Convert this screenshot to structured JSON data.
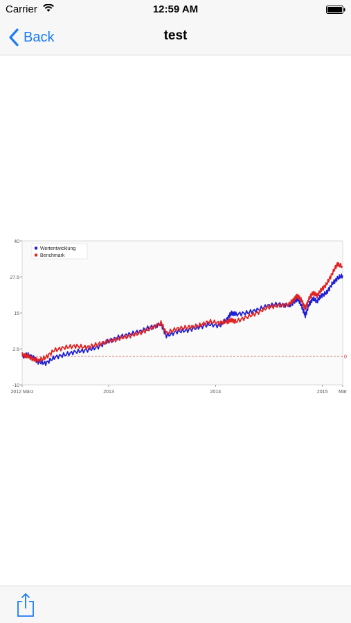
{
  "status_bar": {
    "carrier": "Carrier",
    "time": "12:59 AM"
  },
  "nav": {
    "back_label": "Back",
    "title": "test"
  },
  "toolbar": {
    "share_icon": "share-icon"
  },
  "colors": {
    "accent": "#1a7cf3",
    "series_1": "#1f1fd6",
    "series_2": "#e02323"
  },
  "chart_data": {
    "type": "line",
    "title": "",
    "xlabel": "",
    "ylabel": "",
    "ylim": [
      -10,
      40
    ],
    "yticks": [
      "-10",
      "2.5",
      "15",
      "27.5",
      "40"
    ],
    "x_tick_labels": [
      {
        "label": "2012 März",
        "t": 0
      },
      {
        "label": "2013",
        "t": 0.81
      },
      {
        "label": "2014",
        "t": 1.81
      },
      {
        "label": "2015",
        "t": 2.81
      },
      {
        "label": "Mär",
        "t": 3.0
      }
    ],
    "xlim": [
      0,
      3.0
    ],
    "reference_line": {
      "value": 0,
      "label": "0"
    },
    "legend": {
      "placement": "top-left"
    },
    "grid": false,
    "series": [
      {
        "name": "Wertentwicklung",
        "color": "#1f1fd6",
        "points": [
          [
            0,
            0
          ],
          [
            0.05,
            0.5
          ],
          [
            0.1,
            -0.5
          ],
          [
            0.15,
            -2
          ],
          [
            0.22,
            -2.5
          ],
          [
            0.3,
            -0.5
          ],
          [
            0.4,
            0.5
          ],
          [
            0.5,
            1.5
          ],
          [
            0.6,
            2
          ],
          [
            0.7,
            3
          ],
          [
            0.8,
            5
          ],
          [
            0.9,
            6.5
          ],
          [
            1.0,
            7.5
          ],
          [
            1.1,
            8.5
          ],
          [
            1.2,
            10
          ],
          [
            1.3,
            11
          ],
          [
            1.35,
            7
          ],
          [
            1.45,
            8.5
          ],
          [
            1.55,
            9
          ],
          [
            1.65,
            10
          ],
          [
            1.75,
            11
          ],
          [
            1.85,
            10.5
          ],
          [
            1.92,
            13
          ],
          [
            1.96,
            15
          ],
          [
            2.0,
            14.5
          ],
          [
            2.1,
            15
          ],
          [
            2.2,
            16
          ],
          [
            2.3,
            17.5
          ],
          [
            2.4,
            18
          ],
          [
            2.5,
            17.5
          ],
          [
            2.55,
            19
          ],
          [
            2.58,
            20
          ],
          [
            2.62,
            17
          ],
          [
            2.65,
            14
          ],
          [
            2.68,
            17.5
          ],
          [
            2.72,
            20
          ],
          [
            2.76,
            19
          ],
          [
            2.8,
            21
          ],
          [
            2.85,
            22
          ],
          [
            2.9,
            25
          ],
          [
            2.95,
            27
          ],
          [
            3.0,
            28
          ]
        ]
      },
      {
        "name": "Benchmark",
        "color": "#e02323",
        "points": [
          [
            0,
            0.5
          ],
          [
            0.05,
            0
          ],
          [
            0.1,
            -1
          ],
          [
            0.15,
            -1.5
          ],
          [
            0.22,
            -0.5
          ],
          [
            0.3,
            2
          ],
          [
            0.4,
            3
          ],
          [
            0.5,
            3.5
          ],
          [
            0.6,
            3
          ],
          [
            0.7,
            4
          ],
          [
            0.8,
            5
          ],
          [
            0.9,
            6
          ],
          [
            1.0,
            7
          ],
          [
            1.1,
            8
          ],
          [
            1.2,
            9.5
          ],
          [
            1.3,
            11.5
          ],
          [
            1.35,
            8
          ],
          [
            1.45,
            9.5
          ],
          [
            1.55,
            10
          ],
          [
            1.65,
            10.5
          ],
          [
            1.75,
            12
          ],
          [
            1.85,
            11.5
          ],
          [
            1.92,
            12
          ],
          [
            1.96,
            12.5
          ],
          [
            2.0,
            12
          ],
          [
            2.1,
            13.5
          ],
          [
            2.2,
            15
          ],
          [
            2.3,
            17
          ],
          [
            2.4,
            17.5
          ],
          [
            2.5,
            18
          ],
          [
            2.55,
            20
          ],
          [
            2.58,
            21
          ],
          [
            2.62,
            19
          ],
          [
            2.65,
            16.5
          ],
          [
            2.68,
            19.5
          ],
          [
            2.72,
            22
          ],
          [
            2.76,
            21
          ],
          [
            2.8,
            23
          ],
          [
            2.85,
            25
          ],
          [
            2.9,
            28.5
          ],
          [
            2.95,
            32
          ],
          [
            3.0,
            31
          ]
        ]
      }
    ]
  }
}
